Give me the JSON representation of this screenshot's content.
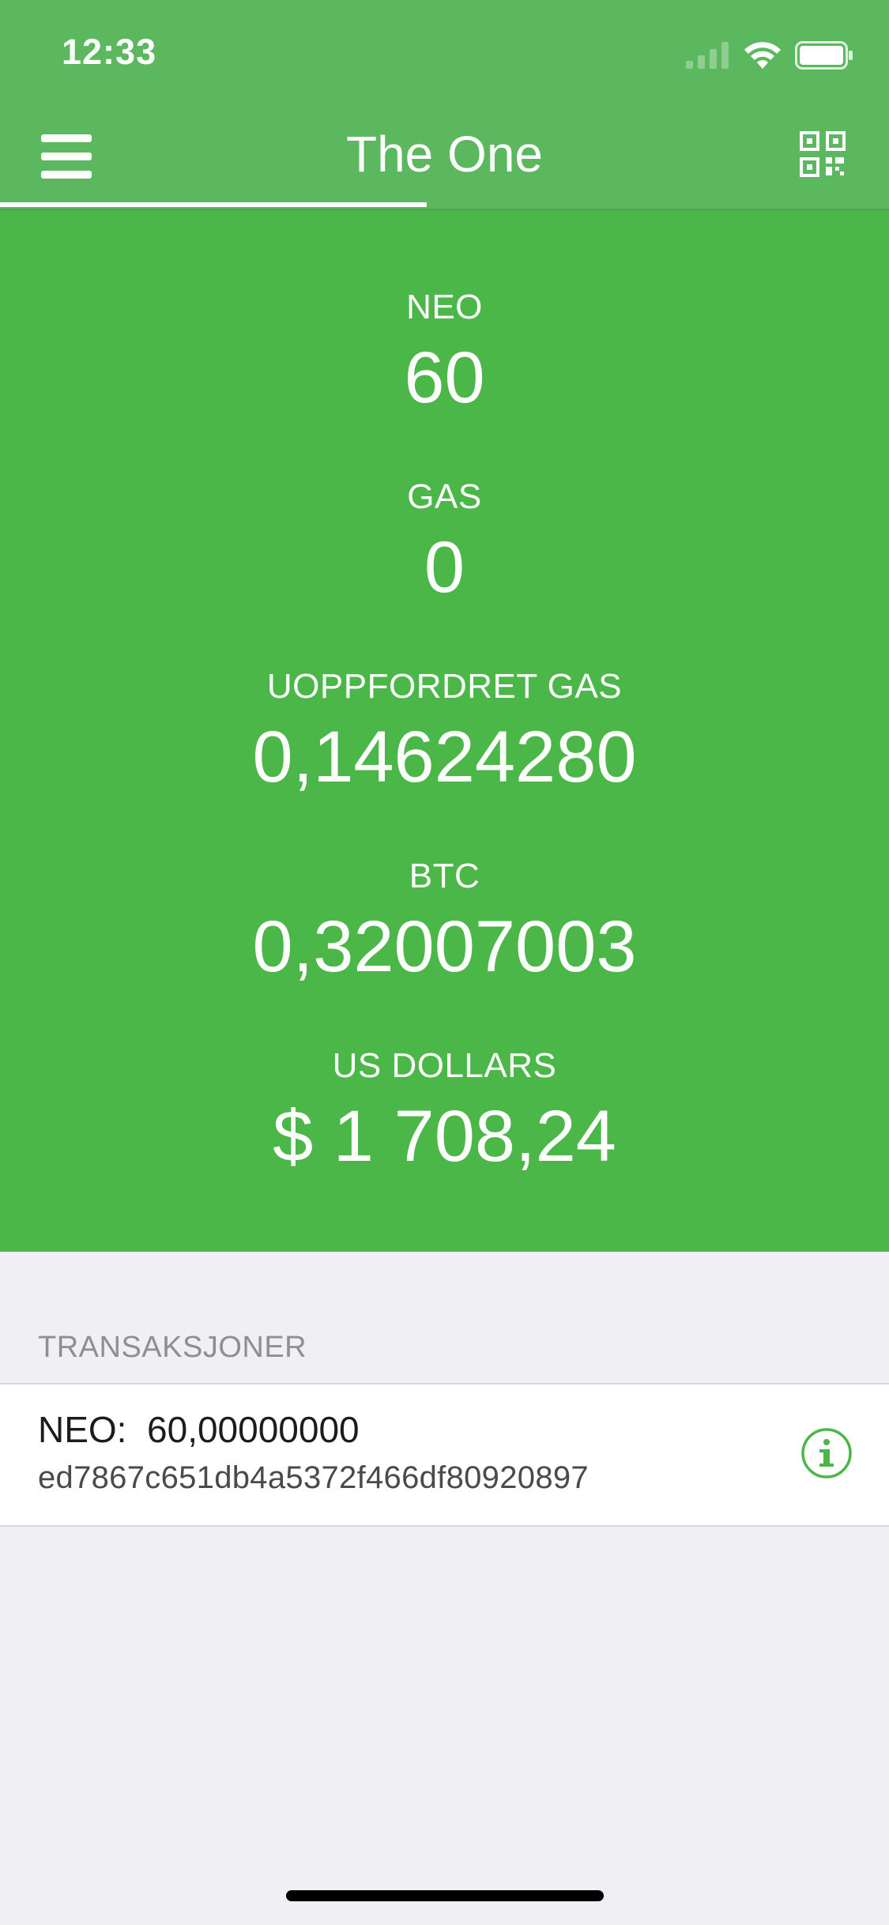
{
  "status_bar": {
    "time": "12:33",
    "icons": [
      "signal-icon",
      "wifi-icon",
      "battery-icon"
    ]
  },
  "nav": {
    "title": "The One",
    "menu_icon": "hamburger-menu-icon",
    "qr_icon": "qr-code-icon"
  },
  "balances": [
    {
      "label": "NEO",
      "value": "60"
    },
    {
      "label": "GAS",
      "value": "0"
    },
    {
      "label": "UOPPFORDRET GAS",
      "value": "0,14624280"
    },
    {
      "label": "BTC",
      "value": "0,32007003"
    },
    {
      "label": "US DOLLARS",
      "value": "$ 1 708,24"
    }
  ],
  "transactions": {
    "header": "TRANSAKSJONER",
    "items": [
      {
        "asset": "NEO:",
        "amount": "60,00000000",
        "hash": "ed7867c651db4a5372f466df80920897",
        "icon": "info-icon"
      }
    ]
  },
  "colors": {
    "nav_green": "#5bb85e",
    "balance_green": "#4bb749",
    "background": "#efeff4",
    "info_green": "#4bb749"
  }
}
